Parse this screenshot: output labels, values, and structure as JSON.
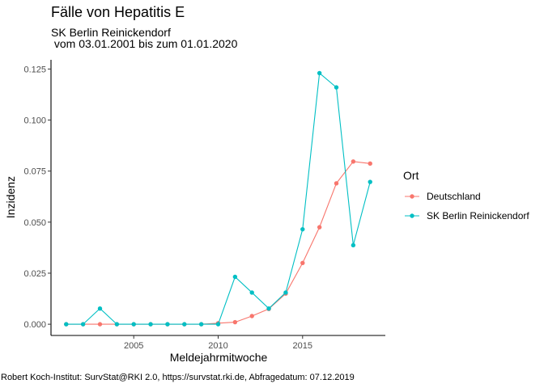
{
  "chart_data": {
    "type": "line",
    "title": "Fälle von Hepatitis E",
    "subtitle_line1": "SK Berlin Reinickendorf",
    "subtitle_line2": " vom 03.01.2001 bis zum 01.01.2020",
    "xlabel": "Meldejahrmitwoche",
    "ylabel": "Inzidenz",
    "caption": "Robert Koch-Institut: SurvStat@RKI 2.0, https://survstat.rki.de, Abfragedatum: 07.12.2019",
    "xlim": [
      2000.1,
      2019.9
    ],
    "ylim": [
      -0.0055,
      0.1295
    ],
    "x_ticks": [
      2005,
      2010,
      2015
    ],
    "x_tick_labels": [
      "2005",
      "2010",
      "2015"
    ],
    "y_ticks": [
      0,
      0.025,
      0.05,
      0.075,
      0.1,
      0.125
    ],
    "y_tick_labels": [
      "0.000",
      "0.025",
      "0.050",
      "0.075",
      "0.100",
      "0.125"
    ],
    "grid": false,
    "legend": {
      "title": "Ort",
      "placement": "right"
    },
    "x": [
      2001,
      2002,
      2003,
      2004,
      2005,
      2006,
      2007,
      2008,
      2009,
      2010,
      2011,
      2012,
      2013,
      2014,
      2015,
      2016,
      2017,
      2018,
      2019
    ],
    "series": [
      {
        "name": "Deutschland",
        "color": "#F8766D",
        "values": [
          0,
          0,
          0,
          0,
          0,
          0,
          0,
          0,
          0,
          0.0005,
          0.001,
          0.004,
          0.0075,
          0.015,
          0.03,
          0.0475,
          0.069,
          0.0797,
          0.0787
        ]
      },
      {
        "name": "SK Berlin Reinickendorf",
        "color": "#00BFC4",
        "values": [
          0,
          0,
          0.0077,
          0,
          0,
          0,
          0,
          0,
          0,
          0,
          0.0232,
          0.0155,
          0.0077,
          0.0155,
          0.0465,
          0.123,
          0.116,
          0.0387,
          0.0697
        ]
      }
    ]
  }
}
